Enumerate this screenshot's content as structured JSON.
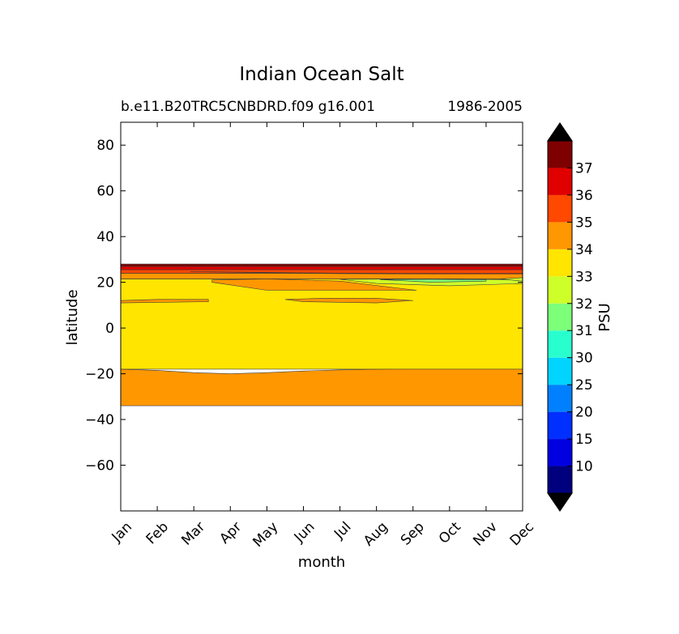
{
  "chart_data": {
    "type": "heatmap",
    "subtype": "filled-contour",
    "title": "Indian Ocean Salt",
    "case_label": "b.e11.B20TRC5CNBDRD.f09 g16.001",
    "period_label": "1986-2005",
    "xlabel": "month",
    "ylabel": "latitude",
    "x_categories": [
      "Jan",
      "Feb",
      "Mar",
      "Apr",
      "May",
      "Jun",
      "Jul",
      "Aug",
      "Sep",
      "Oct",
      "Nov",
      "Dec"
    ],
    "xlim": [
      0,
      11
    ],
    "ylim": [
      -80,
      90
    ],
    "yticks": [
      80,
      60,
      40,
      20,
      0,
      -20,
      -40,
      -60
    ],
    "ytick_labels": [
      "80",
      "60",
      "40",
      "20",
      "0",
      "−20",
      "−40",
      "−60"
    ],
    "colorbar": {
      "label": "PSU",
      "levels": [
        10,
        15,
        20,
        25,
        30,
        31,
        32,
        33,
        34,
        35,
        36,
        37
      ],
      "tick_labels": [
        "10",
        "15",
        "20",
        "25",
        "30",
        "31",
        "32",
        "33",
        "34",
        "35",
        "36",
        "37"
      ],
      "colors": [
        "#00007f",
        "#0000e0",
        "#0030ff",
        "#0080ff",
        "#00d4ff",
        "#29ffce",
        "#7dff7a",
        "#ceff29",
        "#ffe500",
        "#ff9700",
        "#ff4800",
        "#e00000",
        "#7f0000"
      ],
      "extend": "both",
      "under_color": "#000000",
      "over_color": "#000000"
    },
    "bands": [
      {
        "range": "34-35",
        "color": "#ff9700",
        "x": [
          0,
          1,
          2,
          3,
          4,
          5,
          6,
          7,
          8,
          9,
          10,
          11
        ],
        "lower": [
          -34,
          -34,
          -34,
          -34,
          -34,
          -34,
          -34,
          -34,
          -34,
          -34,
          -34,
          -34
        ],
        "upper": [
          -18,
          -18.5,
          -19.5,
          -20,
          -19.5,
          -18.8,
          -18.3,
          -18,
          -17.8,
          -17.8,
          -17.8,
          -17.8
        ]
      },
      {
        "range": "33-34",
        "color": "#ffe500",
        "x": [
          0,
          11
        ],
        "lower": [
          -18,
          -18
        ],
        "upper": [
          21.5,
          21.5
        ]
      },
      {
        "range": "34-35",
        "color": "#ff9700",
        "x": [
          0,
          11
        ],
        "lower": [
          21.5,
          21.5
        ],
        "upper": [
          24,
          24
        ]
      },
      {
        "range": "35-36",
        "color": "#ff4800",
        "x": [
          0,
          11
        ],
        "lower": [
          24,
          24
        ],
        "upper": [
          25.5,
          25.5
        ]
      },
      {
        "range": "36-37",
        "color": "#e00000",
        "x": [
          0,
          11
        ],
        "lower": [
          25.5,
          25.5
        ],
        "upper": [
          27,
          27
        ]
      },
      {
        "range": "over 37",
        "color": "#7f0000",
        "x": [
          0,
          11
        ],
        "lower": [
          27,
          27
        ],
        "upper": [
          28,
          28
        ]
      }
    ],
    "patches": [
      {
        "range": "34-35",
        "color": "#ff9700",
        "x": [
          2.5,
          4,
          6,
          8.1,
          5.5,
          4,
          2.5
        ],
        "y": [
          21,
          21.5,
          20.5,
          16.5,
          16.5,
          16.5,
          20
        ]
      },
      {
        "range": "34-35",
        "color": "#ff9700",
        "x": [
          0,
          1,
          2.4,
          2.4,
          0,
          0
        ],
        "y": [
          12,
          12.5,
          12.5,
          11.5,
          11,
          12
        ]
      },
      {
        "range": "34-35",
        "color": "#ff9700",
        "x": [
          4.5,
          5.5,
          7,
          8,
          7,
          5,
          4.5
        ],
        "y": [
          12.5,
          13,
          13,
          12,
          11,
          11.5,
          12.5
        ]
      },
      {
        "range": "32-33",
        "color": "#ceff29",
        "x": [
          6,
          7,
          9,
          10.5,
          11,
          11,
          9,
          7,
          6
        ],
        "y": [
          21.3,
          21.4,
          21.4,
          21.2,
          21,
          19.5,
          18.5,
          19.5,
          21.3
        ]
      },
      {
        "range": "31-32",
        "color": "#7dff7a",
        "x": [
          7.1,
          8.5,
          10,
          10,
          8.5,
          7.1
        ],
        "y": [
          21.2,
          21.3,
          21.1,
          20.5,
          20,
          21.2
        ]
      },
      {
        "range": "32-33",
        "color": "#ceff29",
        "x": [
          10.4,
          11,
          11,
          10.4
        ],
        "y": [
          21.5,
          22,
          20.5,
          21.5
        ]
      },
      {
        "range": "35-36",
        "color": "#ff4800",
        "x": [
          1.9,
          4,
          6,
          8.5,
          10,
          11,
          11,
          6,
          1.9
        ],
        "y": [
          24.7,
          24.2,
          23.8,
          23.6,
          23.6,
          23.6,
          24,
          24,
          24.7
        ]
      }
    ]
  }
}
